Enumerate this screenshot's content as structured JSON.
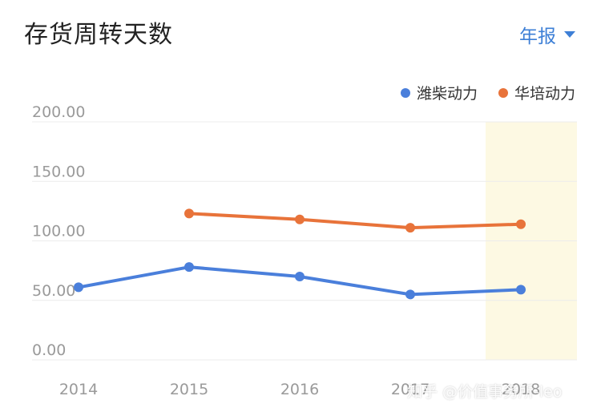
{
  "header": {
    "title": "存货周转天数",
    "period_label": "年报"
  },
  "watermark": "知乎 @价值事务所-leo",
  "chart_data": {
    "type": "line",
    "title": "存货周转天数",
    "x": [
      "2014",
      "2015",
      "2016",
      "2017",
      "2018"
    ],
    "series": [
      {
        "name": "潍柴动力",
        "color": "#4a7fdb",
        "values": [
          61,
          78,
          70,
          55,
          59
        ]
      },
      {
        "name": "华培动力",
        "color": "#e8733a",
        "values": [
          null,
          123,
          118,
          111,
          114
        ]
      }
    ],
    "ylim": [
      0,
      200
    ],
    "yticks": [
      "200.00",
      "150.00",
      "100.00",
      "50.00",
      "0.00"
    ],
    "highlight_category": "2018",
    "highlight_color": "#fdf9e3",
    "grid": true,
    "legend": "top-right"
  }
}
